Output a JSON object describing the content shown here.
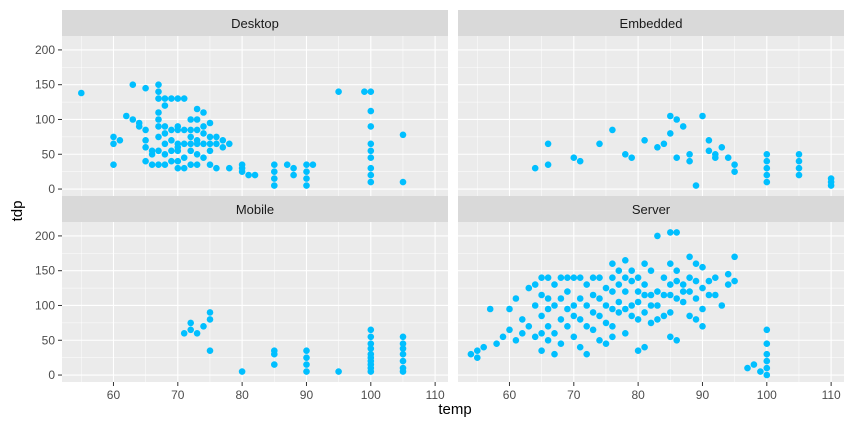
{
  "chart_data": {
    "type": "scatter",
    "xlabel": "temp",
    "ylabel": "tdp",
    "xlim": [
      52,
      112
    ],
    "ylim": [
      -10,
      220
    ],
    "x_ticks": [
      60,
      70,
      80,
      90,
      100,
      110
    ],
    "y_ticks": [
      0,
      50,
      100,
      150,
      200
    ],
    "grid": true,
    "point_color": "#00BFFF",
    "panel_bg": "#EBEBEB",
    "strip_bg": "#D9D9D9",
    "facets": [
      {
        "name": "Desktop",
        "points": [
          [
            55,
            138
          ],
          [
            60,
            65
          ],
          [
            60,
            75
          ],
          [
            60,
            35
          ],
          [
            61,
            70
          ],
          [
            62,
            105
          ],
          [
            63,
            150
          ],
          [
            63,
            100
          ],
          [
            64,
            95
          ],
          [
            64,
            90
          ],
          [
            65,
            145
          ],
          [
            65,
            85
          ],
          [
            65,
            70
          ],
          [
            65,
            60
          ],
          [
            65,
            40
          ],
          [
            66,
            55
          ],
          [
            66,
            50
          ],
          [
            66,
            35
          ],
          [
            67,
            150
          ],
          [
            67,
            140
          ],
          [
            67,
            130
          ],
          [
            67,
            110
          ],
          [
            67,
            100
          ],
          [
            67,
            90
          ],
          [
            67,
            75
          ],
          [
            67,
            55
          ],
          [
            67,
            35
          ],
          [
            68,
            130
          ],
          [
            68,
            120
          ],
          [
            68,
            90
          ],
          [
            68,
            80
          ],
          [
            68,
            65
          ],
          [
            68,
            50
          ],
          [
            68,
            35
          ],
          [
            69,
            130
          ],
          [
            69,
            85
          ],
          [
            69,
            70
          ],
          [
            69,
            55
          ],
          [
            69,
            40
          ],
          [
            70,
            130
          ],
          [
            70,
            90
          ],
          [
            70,
            85
          ],
          [
            70,
            65
          ],
          [
            70,
            60
          ],
          [
            70,
            55
          ],
          [
            70,
            40
          ],
          [
            70,
            30
          ],
          [
            71,
            130
          ],
          [
            71,
            85
          ],
          [
            71,
            65
          ],
          [
            71,
            45
          ],
          [
            71,
            30
          ],
          [
            72,
            100
          ],
          [
            72,
            85
          ],
          [
            72,
            75
          ],
          [
            72,
            65
          ],
          [
            72,
            55
          ],
          [
            72,
            35
          ],
          [
            73,
            115
          ],
          [
            73,
            100
          ],
          [
            73,
            85
          ],
          [
            73,
            70
          ],
          [
            73,
            65
          ],
          [
            73,
            50
          ],
          [
            73,
            35
          ],
          [
            74,
            110
          ],
          [
            74,
            90
          ],
          [
            74,
            80
          ],
          [
            74,
            65
          ],
          [
            74,
            45
          ],
          [
            75,
            95
          ],
          [
            75,
            75
          ],
          [
            75,
            65
          ],
          [
            75,
            55
          ],
          [
            75,
            35
          ],
          [
            76,
            75
          ],
          [
            76,
            65
          ],
          [
            76,
            30
          ],
          [
            77,
            70
          ],
          [
            77,
            60
          ],
          [
            78,
            65
          ],
          [
            78,
            30
          ],
          [
            80,
            35
          ],
          [
            80,
            30
          ],
          [
            80,
            25
          ],
          [
            81,
            20
          ],
          [
            82,
            20
          ],
          [
            85,
            35
          ],
          [
            85,
            25
          ],
          [
            85,
            15
          ],
          [
            85,
            5
          ],
          [
            87,
            35
          ],
          [
            88,
            30
          ],
          [
            88,
            20
          ],
          [
            90,
            35
          ],
          [
            90,
            25
          ],
          [
            90,
            15
          ],
          [
            90,
            5
          ],
          [
            91,
            35
          ],
          [
            95,
            140
          ],
          [
            99,
            140
          ],
          [
            100,
            140
          ],
          [
            100,
            112
          ],
          [
            100,
            90
          ],
          [
            100,
            65
          ],
          [
            100,
            55
          ],
          [
            100,
            45
          ],
          [
            100,
            30
          ],
          [
            100,
            20
          ],
          [
            100,
            10
          ],
          [
            105,
            78
          ],
          [
            105,
            10
          ]
        ]
      },
      {
        "name": "Embedded",
        "points": [
          [
            64,
            30
          ],
          [
            66,
            65
          ],
          [
            66,
            35
          ],
          [
            70,
            45
          ],
          [
            71,
            40
          ],
          [
            74,
            65
          ],
          [
            76,
            85
          ],
          [
            78,
            50
          ],
          [
            79,
            45
          ],
          [
            81,
            70
          ],
          [
            83,
            60
          ],
          [
            84,
            65
          ],
          [
            85,
            105
          ],
          [
            85,
            80
          ],
          [
            86,
            100
          ],
          [
            86,
            45
          ],
          [
            87,
            90
          ],
          [
            88,
            50
          ],
          [
            88,
            40
          ],
          [
            89,
            5
          ],
          [
            90,
            105
          ],
          [
            91,
            70
          ],
          [
            91,
            55
          ],
          [
            92,
            50
          ],
          [
            92,
            45
          ],
          [
            93,
            60
          ],
          [
            94,
            45
          ],
          [
            95,
            35
          ],
          [
            95,
            25
          ],
          [
            100,
            50
          ],
          [
            100,
            40
          ],
          [
            100,
            30
          ],
          [
            100,
            20
          ],
          [
            100,
            10
          ],
          [
            105,
            50
          ],
          [
            105,
            40
          ],
          [
            105,
            30
          ],
          [
            105,
            20
          ],
          [
            110,
            15
          ],
          [
            110,
            10
          ],
          [
            110,
            5
          ]
        ]
      },
      {
        "name": "Mobile",
        "points": [
          [
            71,
            60
          ],
          [
            72,
            65
          ],
          [
            72,
            75
          ],
          [
            73,
            60
          ],
          [
            74,
            70
          ],
          [
            75,
            90
          ],
          [
            75,
            80
          ],
          [
            75,
            35
          ],
          [
            80,
            5
          ],
          [
            85,
            35
          ],
          [
            85,
            30
          ],
          [
            85,
            15
          ],
          [
            90,
            35
          ],
          [
            90,
            25
          ],
          [
            90,
            15
          ],
          [
            90,
            5
          ],
          [
            95,
            5
          ],
          [
            100,
            65
          ],
          [
            100,
            55
          ],
          [
            100,
            45
          ],
          [
            100,
            38
          ],
          [
            100,
            30
          ],
          [
            100,
            25
          ],
          [
            100,
            20
          ],
          [
            100,
            15
          ],
          [
            100,
            10
          ],
          [
            100,
            5
          ],
          [
            105,
            55
          ],
          [
            105,
            45
          ],
          [
            105,
            38
          ],
          [
            105,
            30
          ],
          [
            105,
            20
          ],
          [
            105,
            10
          ],
          [
            105,
            5
          ]
        ]
      },
      {
        "name": "Server",
        "points": [
          [
            54,
            30
          ],
          [
            55,
            25
          ],
          [
            55,
            35
          ],
          [
            56,
            40
          ],
          [
            57,
            95
          ],
          [
            58,
            45
          ],
          [
            59,
            55
          ],
          [
            60,
            95
          ],
          [
            60,
            65
          ],
          [
            61,
            110
          ],
          [
            61,
            50
          ],
          [
            62,
            80
          ],
          [
            62,
            60
          ],
          [
            63,
            125
          ],
          [
            63,
            70
          ],
          [
            64,
            130
          ],
          [
            64,
            100
          ],
          [
            64,
            55
          ],
          [
            65,
            140
          ],
          [
            65,
            115
          ],
          [
            65,
            85
          ],
          [
            65,
            60
          ],
          [
            65,
            35
          ],
          [
            66,
            140
          ],
          [
            66,
            110
          ],
          [
            66,
            95
          ],
          [
            66,
            70
          ],
          [
            66,
            50
          ],
          [
            67,
            130
          ],
          [
            67,
            100
          ],
          [
            67,
            60
          ],
          [
            67,
            30
          ],
          [
            68,
            140
          ],
          [
            68,
            110
          ],
          [
            68,
            80
          ],
          [
            68,
            45
          ],
          [
            69,
            140
          ],
          [
            69,
            120
          ],
          [
            69,
            95
          ],
          [
            69,
            70
          ],
          [
            70,
            140
          ],
          [
            70,
            100
          ],
          [
            70,
            85
          ],
          [
            70,
            55
          ],
          [
            71,
            140
          ],
          [
            71,
            110
          ],
          [
            71,
            80
          ],
          [
            71,
            40
          ],
          [
            72,
            130
          ],
          [
            72,
            100
          ],
          [
            72,
            70
          ],
          [
            72,
            30
          ],
          [
            73,
            140
          ],
          [
            73,
            115
          ],
          [
            73,
            90
          ],
          [
            73,
            65
          ],
          [
            74,
            140
          ],
          [
            74,
            110
          ],
          [
            74,
            85
          ],
          [
            74,
            50
          ],
          [
            75,
            125
          ],
          [
            75,
            100
          ],
          [
            75,
            75
          ],
          [
            75,
            45
          ],
          [
            76,
            160
          ],
          [
            76,
            140
          ],
          [
            76,
            120
          ],
          [
            76,
            95
          ],
          [
            76,
            70
          ],
          [
            76,
            55
          ],
          [
            77,
            150
          ],
          [
            77,
            130
          ],
          [
            77,
            105
          ],
          [
            77,
            90
          ],
          [
            78,
            165
          ],
          [
            78,
            140
          ],
          [
            78,
            120
          ],
          [
            78,
            95
          ],
          [
            78,
            60
          ],
          [
            79,
            150
          ],
          [
            79,
            135
          ],
          [
            79,
            100
          ],
          [
            79,
            85
          ],
          [
            80,
            140
          ],
          [
            80,
            120
          ],
          [
            80,
            105
          ],
          [
            80,
            80
          ],
          [
            80,
            35
          ],
          [
            81,
            160
          ],
          [
            81,
            130
          ],
          [
            81,
            115
          ],
          [
            81,
            90
          ],
          [
            81,
            40
          ],
          [
            82,
            150
          ],
          [
            82,
            115
          ],
          [
            82,
            100
          ],
          [
            82,
            75
          ],
          [
            83,
            200
          ],
          [
            83,
            120
          ],
          [
            83,
            100
          ],
          [
            83,
            80
          ],
          [
            84,
            140
          ],
          [
            84,
            115
          ],
          [
            84,
            85
          ],
          [
            85,
            205
          ],
          [
            85,
            160
          ],
          [
            85,
            130
          ],
          [
            85,
            115
          ],
          [
            85,
            90
          ],
          [
            85,
            55
          ],
          [
            86,
            205
          ],
          [
            86,
            150
          ],
          [
            86,
            135
          ],
          [
            86,
            110
          ],
          [
            86,
            50
          ],
          [
            87,
            130
          ],
          [
            87,
            120
          ],
          [
            87,
            105
          ],
          [
            88,
            170
          ],
          [
            88,
            140
          ],
          [
            88,
            120
          ],
          [
            88,
            85
          ],
          [
            89,
            160
          ],
          [
            89,
            135
          ],
          [
            89,
            110
          ],
          [
            89,
            80
          ],
          [
            90,
            155
          ],
          [
            90,
            125
          ],
          [
            90,
            95
          ],
          [
            90,
            70
          ],
          [
            91,
            135
          ],
          [
            91,
            115
          ],
          [
            92,
            140
          ],
          [
            92,
            115
          ],
          [
            93,
            100
          ],
          [
            94,
            145
          ],
          [
            94,
            130
          ],
          [
            95,
            170
          ],
          [
            95,
            135
          ],
          [
            97,
            10
          ],
          [
            98,
            15
          ],
          [
            99,
            5
          ],
          [
            100,
            65
          ],
          [
            100,
            45
          ],
          [
            100,
            30
          ],
          [
            100,
            20
          ],
          [
            100,
            10
          ],
          [
            100,
            0
          ]
        ]
      }
    ]
  }
}
